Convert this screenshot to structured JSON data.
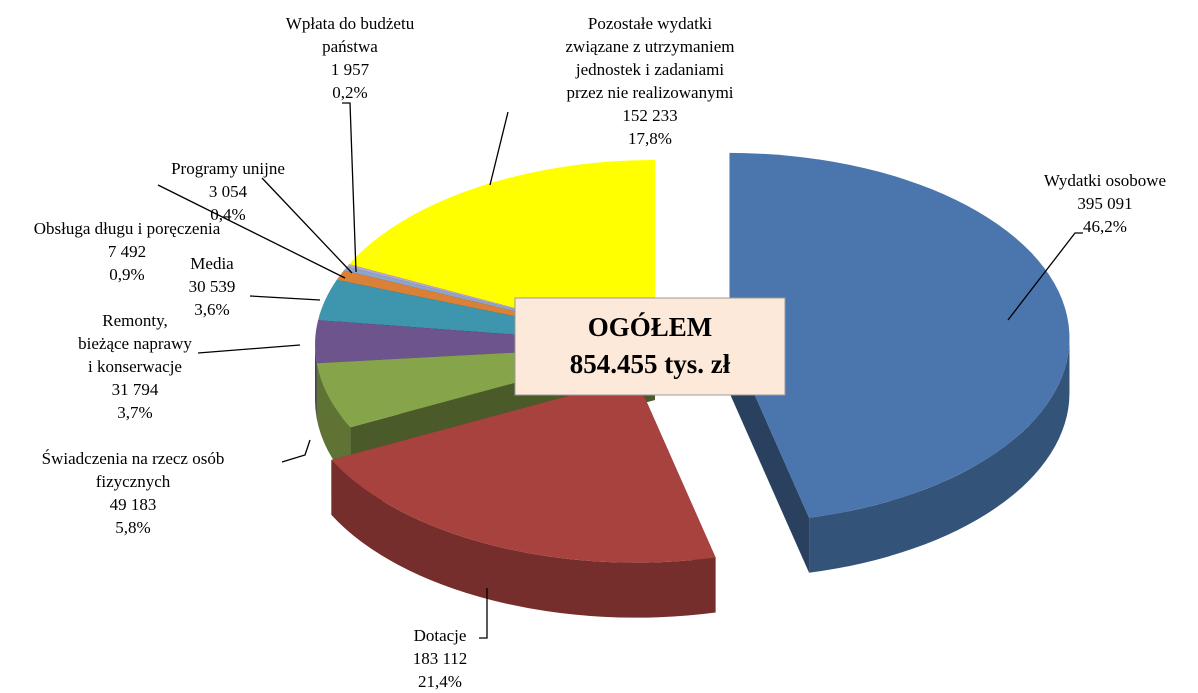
{
  "chart_data": {
    "type": "pie3d",
    "categories": [
      [
        "Wydatki osobowe"
      ],
      [
        "Dotacje"
      ],
      [
        "Świadczenia na rzecz osób",
        "fizycznych"
      ],
      [
        "Remonty,",
        "bieżące naprawy",
        "i konserwacje"
      ],
      [
        "Media"
      ],
      [
        "Obsługa długu i poręczenia"
      ],
      [
        "Programy unijne"
      ],
      [
        "Wpłata do budżetu",
        "państwa"
      ],
      [
        "Pozostałe wydatki",
        "związane z utrzymaniem",
        "jednostek i zadaniami",
        "przez nie realizowanymi"
      ]
    ],
    "values": [
      395091,
      183112,
      49183,
      31794,
      30539,
      7492,
      3054,
      1957,
      152233
    ],
    "value_labels": [
      "395 091",
      "183 112",
      "49 183",
      "31 794",
      "30 539",
      "7 492",
      "3 054",
      "1 957",
      "152 233"
    ],
    "percentages": [
      46.2,
      21.4,
      5.8,
      3.7,
      3.6,
      0.9,
      0.4,
      0.2,
      17.8
    ],
    "percentage_labels": [
      "46,2%",
      "21,4%",
      "5,8%",
      "3,7%",
      "3,6%",
      "0,9%",
      "0,4%",
      "0,2%",
      "17,8%"
    ],
    "colors": [
      "#4a76ad",
      "#a8423f",
      "#86a44a",
      "#6e548d",
      "#3d96ae",
      "#da8137",
      "#8ea5cb",
      "#b5a7c9",
      "#ffff00"
    ],
    "annotation": [
      "OGÓŁEM",
      "854.455 tys. zł"
    ]
  }
}
